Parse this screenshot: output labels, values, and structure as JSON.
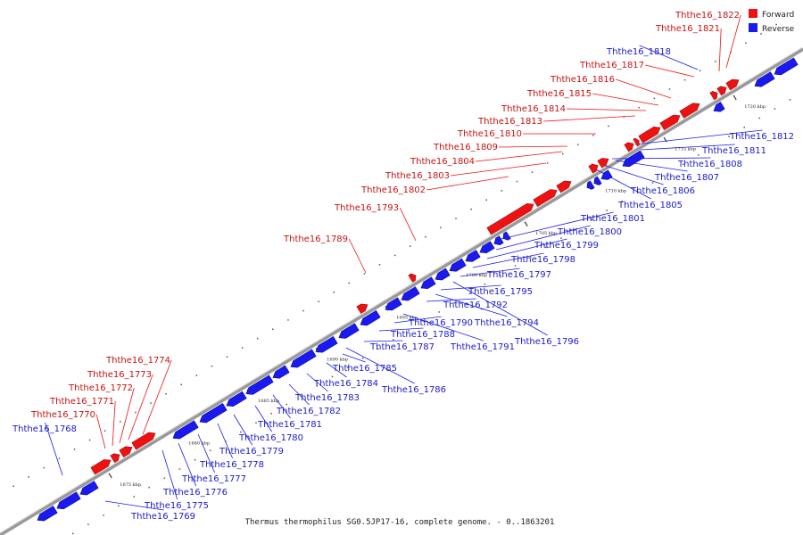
{
  "caption": "Thermus thermophilus SG0.5JP17-16, complete genome. - 0..1863201",
  "legend": [
    {
      "label": "Forward",
      "color": "#ee1111"
    },
    {
      "label": "Reverse",
      "color": "#1a1aee"
    }
  ],
  "colors": {
    "forward": "#ee1111",
    "reverse": "#1a1aee",
    "forward_label": "#cc1111",
    "reverse_label": "#1a1acc",
    "backbone": "#888888"
  },
  "scale_ticks": [
    "1675 kbp",
    "1680 kbp",
    "1685 kbp",
    "1690 kbp",
    "1695 kbp",
    "1700 kbp",
    "1705 kbp",
    "1710 kbp",
    "1715 kbp",
    "1720 kbp"
  ],
  "forward_genes": [
    "Ththe16_1770",
    "Ththe16_1771",
    "Ththe16_1772",
    "Ththe16_1773",
    "Ththe16_1774",
    "Ththe16_1789",
    "Ththe16_1793",
    "Ththe16_1802",
    "Ththe16_1803",
    "Ththe16_1804",
    "Ththe16_1809",
    "Ththe16_1810",
    "Ththe16_1813",
    "Ththe16_1814",
    "Ththe16_1815",
    "Ththe16_1816",
    "Ththe16_1817",
    "Ththe16_1821",
    "Ththe16_1822"
  ],
  "reverse_genes": [
    "Ththe16_1768",
    "Ththe16_1769",
    "Ththe16_1775",
    "Ththe16_1776",
    "Ththe16_1777",
    "Ththe16_1778",
    "Ththe16_1779",
    "Ththe16_1780",
    "Ththe16_1781",
    "Ththe16_1782",
    "Ththe16_1783",
    "Ththe16_1784",
    "Ththe16_1785",
    "Ththe16_1786",
    "Ththe16_1787",
    "Ththe16_1788",
    "Ththe16_1790",
    "Ththe16_1791",
    "Ththe16_1792",
    "Ththe16_1794",
    "Ththe16_1795",
    "Ththe16_1796",
    "Ththe16_1797",
    "Ththe16_1798",
    "Ththe16_1799",
    "Ththe16_1800",
    "Ththe16_1801",
    "Ththe16_1805",
    "Ththe16_1806",
    "Ththe16_1807",
    "Ththe16_1808",
    "Ththe16_1811",
    "Ththe16_1812",
    "Ththe16_1818"
  ]
}
